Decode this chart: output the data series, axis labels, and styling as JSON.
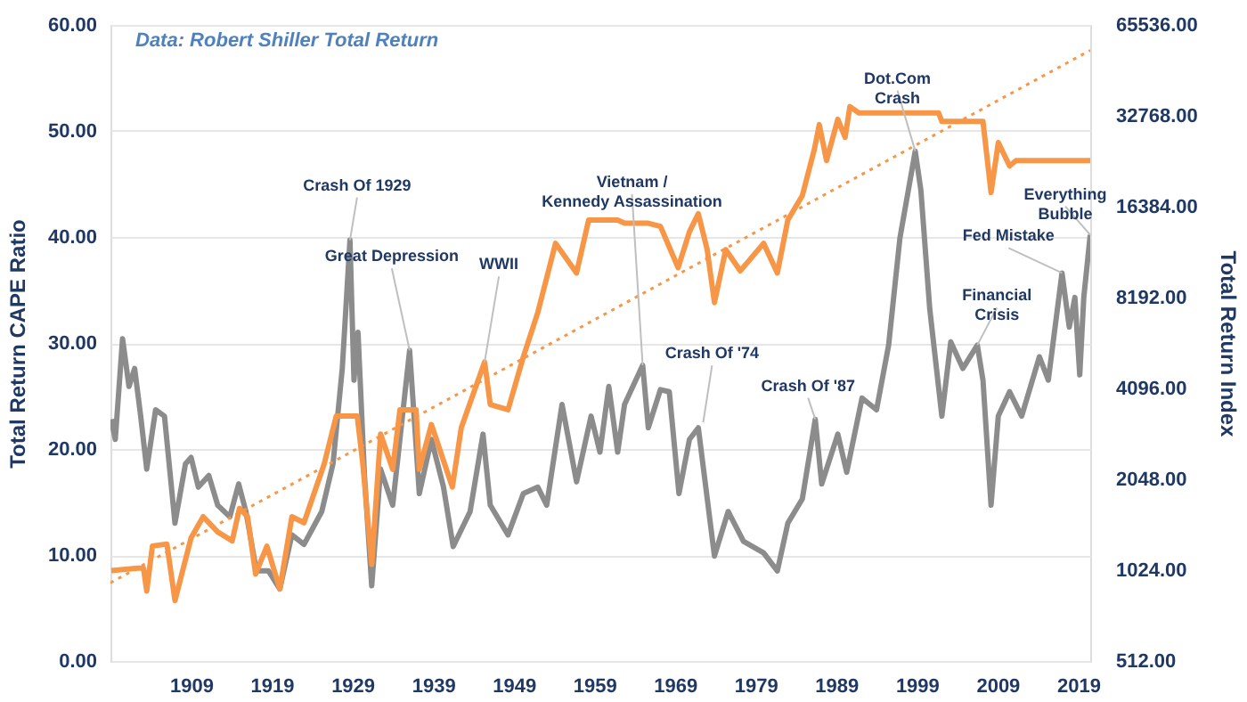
{
  "chart_data": {
    "type": "line",
    "annotations": [
      "Data: Robert Shiller Total Return",
      {
        "text": "Crash Of 1929",
        "x": 1928.7,
        "y": 39.7
      },
      {
        "text": "Great Depression",
        "x": 1936.1,
        "y": 29.3
      },
      {
        "text": "WWII",
        "x": 1945.4,
        "y": 28.2
      },
      {
        "text": "Vietnam /\nKennedy Assassination",
        "x": 1965,
        "y": 27.9
      },
      {
        "text": "Crash Of '74",
        "x": 1972.5,
        "y": 22.5
      },
      {
        "text": "Crash Of '87",
        "x": 1986.4,
        "y": 22.8
      },
      {
        "text": "Dot.Com\nCrash",
        "x": 1998.8,
        "y": 48.1
      },
      {
        "text": "Financial\nCrisis",
        "x": 2006.5,
        "y": 29.8
      },
      {
        "text": "Fed Mistake",
        "x": 2017,
        "y": 36.6
      },
      {
        "text": "Everything\nBubble",
        "x": 2020.5,
        "y": 40.2
      }
    ],
    "ylabel": "Total Return CAPE Ratio",
    "y2label": "Total Return Index",
    "xlim": [
      1899,
      2020.5
    ],
    "xticks": [
      1909,
      1919,
      1929,
      1939,
      1949,
      1959,
      1969,
      1979,
      1989,
      1999,
      2009,
      2019
    ],
    "ylim": [
      0,
      60
    ],
    "yticks": [
      {
        "value": 0,
        "label": "0.00"
      },
      {
        "value": 10,
        "label": "10.00"
      },
      {
        "value": 20,
        "label": "20.00"
      },
      {
        "value": 30,
        "label": "30.00"
      },
      {
        "value": 40,
        "label": "40.00"
      },
      {
        "value": 50,
        "label": "50.00"
      },
      {
        "value": 60,
        "label": "60.00"
      }
    ],
    "y2lim": [
      512,
      65536
    ],
    "y2ticks": [
      {
        "value": 512,
        "label": "512.00"
      },
      {
        "value": 1024,
        "label": "1024.00"
      },
      {
        "value": 2048,
        "label": "2048.00"
      },
      {
        "value": 4096,
        "label": "4096.00"
      },
      {
        "value": 8192,
        "label": "8192.00"
      },
      {
        "value": 16384,
        "label": "16384.00"
      },
      {
        "value": 32768,
        "label": "32768.00"
      },
      {
        "value": 65536,
        "label": "65536.00"
      }
    ],
    "log": "y2",
    "grid": "y",
    "series": [
      {
        "type": "line",
        "color": "#8c8c8c",
        "x": [
          1899.1,
          1899.6,
          1900.5,
          1901.3,
          1902,
          1902.75,
          1903.5,
          1904.6,
          1905.7,
          1907,
          1908.3,
          1909,
          1909.9,
          1911.2,
          1912.3,
          1913.8,
          1914.9,
          1915.8,
          1917.1,
          1918.6,
          1920,
          1921.5,
          1923,
          1925.2,
          1926.6,
          1927.75,
          1928.7,
          1929.2,
          1929.7,
          1930.5,
          1931.4,
          1932.5,
          1934,
          1936.1,
          1937.3,
          1938.8,
          1940.3,
          1941.5,
          1943.6,
          1945.2,
          1946.1,
          1948.3,
          1950.2,
          1952,
          1953.1,
          1955,
          1956.8,
          1958.6,
          1959.7,
          1960.8,
          1961.9,
          1962.75,
          1965,
          1965.7,
          1967.2,
          1968.3,
          1969.5,
          1970.8,
          1971.9,
          1973.9,
          1975.6,
          1977.5,
          1980,
          1981.7,
          1983,
          1984.8,
          1986.4,
          1987.2,
          1989.2,
          1990.3,
          1992.2,
          1994,
          1995.5,
          1996.9,
          1998.8,
          1999.5,
          2000.6,
          2002.1,
          2003.2,
          2004.7,
          2006.5,
          2007.2,
          2008.2,
          2009.1,
          2010.5,
          2012,
          2014.2,
          2015.3,
          2017,
          2017.9,
          2018.6,
          2019.2,
          2019.7,
          2020.5
        ],
        "values": [
          22.8,
          20.9,
          30.4,
          25.9,
          27.6,
          23.1,
          18.1,
          23.7,
          23.1,
          13.0,
          18.6,
          19.2,
          16.4,
          17.5,
          14.7,
          13.6,
          16.7,
          14.1,
          8.5,
          8.5,
          6.8,
          11.9,
          11.0,
          14.1,
          18.6,
          27.6,
          39.7,
          26.5,
          31.0,
          17.5,
          7.1,
          18.1,
          14.7,
          29.3,
          15.8,
          20.9,
          16.4,
          10.8,
          14.1,
          21.4,
          14.7,
          11.9,
          15.8,
          16.4,
          14.7,
          24.2,
          16.9,
          23.1,
          19.7,
          25.9,
          19.7,
          24.2,
          27.9,
          22.0,
          25.6,
          25.4,
          15.8,
          20.9,
          22.0,
          9.9,
          14.1,
          11.3,
          10.2,
          8.5,
          13.0,
          15.3,
          22.8,
          16.7,
          21.4,
          17.8,
          24.8,
          23.7,
          29.8,
          39.9,
          48.1,
          44.4,
          33.2,
          23.1,
          30.1,
          27.6,
          29.8,
          26.5,
          14.7,
          23.1,
          25.4,
          23.1,
          28.7,
          26.5,
          36.6,
          31.5,
          34.3,
          27.0,
          34.3,
          40.2
        ]
      },
      {
        "type": "line",
        "color": "#f79646",
        "axis": "y2",
        "x": [
          1899.1,
          1902.4,
          1903.1,
          1903.5,
          1904.2,
          1906,
          1907,
          1909,
          1910.5,
          1912.3,
          1914.1,
          1915,
          1916,
          1917,
          1918.4,
          1920,
          1921.5,
          1923,
          1925.5,
          1927,
          1929.6,
          1930.3,
          1931.4,
          1932.5,
          1934,
          1934.9,
          1936.9,
          1937.3,
          1938.8,
          1941.4,
          1942.5,
          1945.4,
          1946.1,
          1948.3,
          1950.2,
          1952,
          1954.2,
          1956.8,
          1958.3,
          1961.9,
          1962.75,
          1965.7,
          1967.2,
          1969.4,
          1970.8,
          1971.9,
          1973,
          1973.9,
          1975.3,
          1977.1,
          1980,
          1981.7,
          1983,
          1984.8,
          1986.3,
          1986.9,
          1987.8,
          1989.2,
          1990.1,
          1990.7,
          1991.8,
          2001.7,
          2002.1,
          2007.2,
          2008.2,
          2009.1,
          2010.5,
          2011.3,
          2020.5
        ],
        "values": [
          1020,
          1040,
          1040,
          873,
          1230,
          1250,
          812,
          1310,
          1540,
          1370,
          1280,
          1640,
          1540,
          994,
          1230,
          887,
          1540,
          1470,
          2300,
          3320,
          3320,
          2300,
          1070,
          2890,
          2210,
          3480,
          3480,
          2210,
          3110,
          1930,
          3030,
          5010,
          3620,
          3480,
          5210,
          7320,
          12390,
          9880,
          14800,
          14800,
          14440,
          14440,
          14100,
          10290,
          13540,
          15530,
          11800,
          7880,
          11800,
          10040,
          12390,
          9880,
          14800,
          17830,
          25440,
          30640,
          23290,
          31910,
          27800,
          35170,
          33500,
          33500,
          31390,
          31390,
          18260,
          26710,
          22350,
          23290,
          23290
        ]
      },
      {
        "type": "line",
        "color": "#f79646",
        "axis": "y2",
        "line_style": "dotted",
        "x": [
          1899,
          2020.5
        ],
        "values": [
          930,
          54000
        ]
      }
    ]
  }
}
